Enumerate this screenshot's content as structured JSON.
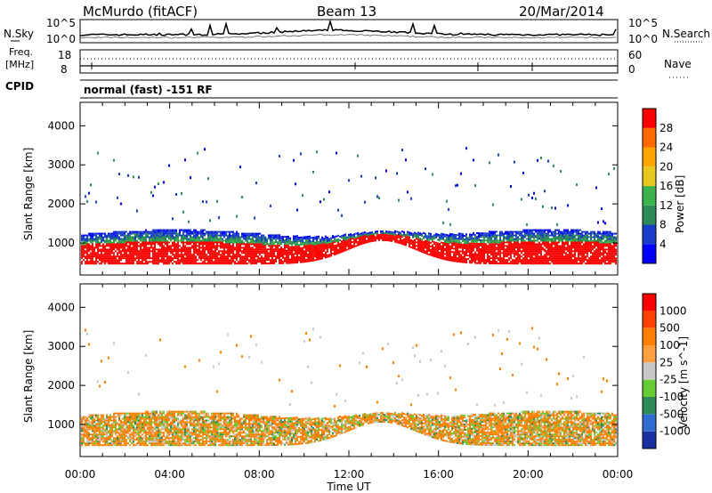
{
  "header": {
    "station": "McMurdo (fitACF)",
    "beam": "Beam 13",
    "date": "20/Mar/2014"
  },
  "noise_panel": {
    "left_label": "N.Sky",
    "right_label": "N.Search",
    "left_ticks": [
      "10^5",
      "10^0"
    ],
    "right_ticks": [
      "10^5",
      "10^0"
    ]
  },
  "freq_panel": {
    "left_label_1": "Freq.",
    "left_label_2": "[MHz]",
    "left_ticks": [
      "18",
      "8"
    ],
    "right_label": "Nave",
    "right_ticks": [
      "60",
      "0"
    ]
  },
  "cpid": {
    "label": "CPID",
    "mode": "normal (fast) -151 RF"
  },
  "chart_data": [
    {
      "type": "heatmap",
      "name": "power",
      "ylabel": "Slant Range [km]",
      "yticks": [
        "1000",
        "2000",
        "3000",
        "4000"
      ],
      "ylim": [
        180,
        4600
      ],
      "colorbar_label": "Power [dB]",
      "colorbar_ticks": [
        "28",
        "24",
        "20",
        "16",
        "12",
        "8",
        "4"
      ],
      "colorbar_colors": [
        "#0000ff",
        "#1a3ec8",
        "#2e8b57",
        "#3cb34a",
        "#e6c81e",
        "#ffa500",
        "#ff6a00",
        "#ff0000"
      ]
    },
    {
      "type": "heatmap",
      "name": "velocity",
      "ylabel": "Slant Range [km]",
      "yticks": [
        "1000",
        "2000",
        "3000",
        "4000"
      ],
      "ylim": [
        180,
        4600
      ],
      "colorbar_label": "Velocity [m s^-1]",
      "colorbar_ticks": [
        "1000",
        "500",
        "100",
        "25",
        "-25",
        "-100",
        "-500",
        "-1000"
      ],
      "colorbar_colors": [
        "#1a2fa0",
        "#2f6ed0",
        "#2e8b57",
        "#66cc33",
        "#c8c8c8",
        "#ffa040",
        "#ff8000",
        "#ff4000",
        "#ff0000"
      ]
    }
  ],
  "xaxis": {
    "ticks": [
      "00:00",
      "04:00",
      "08:00",
      "12:00",
      "16:00",
      "20:00",
      "00:00"
    ],
    "label": "Time UT"
  }
}
